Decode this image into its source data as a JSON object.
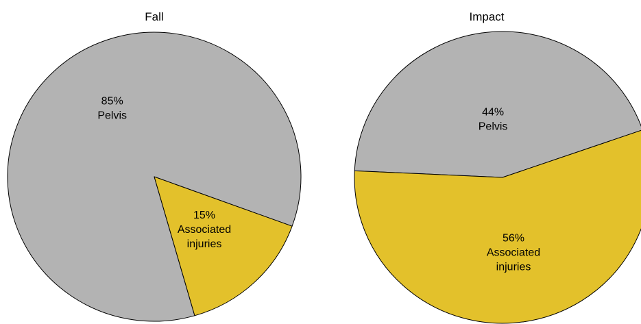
{
  "chart_data": [
    {
      "type": "pie",
      "title": "Fall",
      "slices": [
        {
          "pct_label": "15%",
          "name_lines": [
            "Associated",
            "injuries"
          ],
          "value": 15,
          "color": "#e3c12b"
        },
        {
          "pct_label": "85%",
          "name_lines": [
            "Pelvis"
          ],
          "value": 85,
          "color": "#b3b3b3"
        }
      ]
    },
    {
      "type": "pie",
      "title": "Impact",
      "slices": [
        {
          "pct_label": "56%",
          "name_lines": [
            "Associated",
            "injuries"
          ],
          "value": 56,
          "color": "#e3c12b"
        },
        {
          "pct_label": "44%",
          "name_lines": [
            "Pelvis"
          ],
          "value": 44,
          "color": "#b3b3b3"
        }
      ]
    }
  ]
}
